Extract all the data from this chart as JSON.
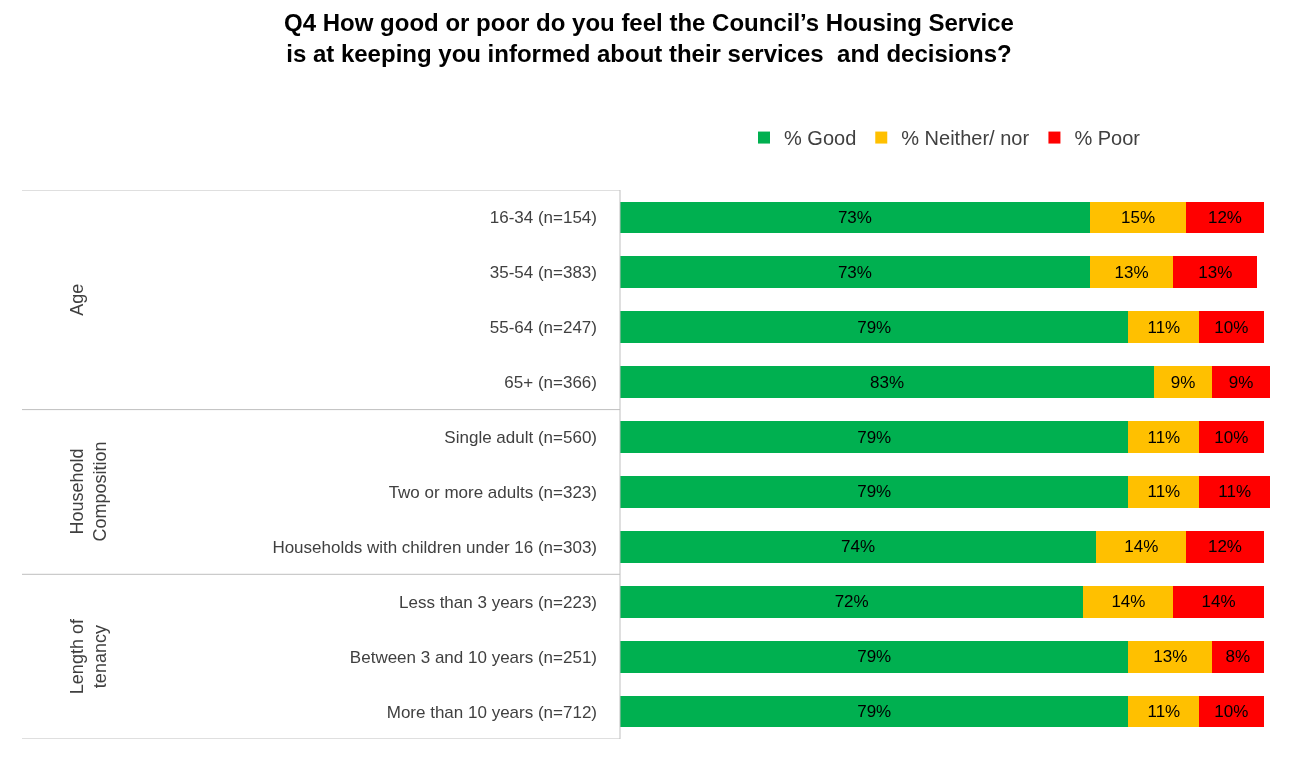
{
  "chart_data": {
    "type": "bar",
    "orientation": "horizontal",
    "stacked": true,
    "legend": "top",
    "title": "Q4 How good or poor do you feel the Council’s Housing Service\nis at keeping you informed about their services  and decisions?",
    "categories": [
      "16-34 (n=154)",
      "35-54 (n=383)",
      "55-64 (n=247)",
      "65+ (n=366)",
      "Single adult (n=560)",
      "Two or more adults (n=323)",
      "Households with children under 16 (n=303)",
      "Less than 3 years (n=223)",
      "Between 3 and 10 years (n=251)",
      "More than 10 years (n=712)"
    ],
    "series": [
      {
        "name": "% Good",
        "color": "#00b050",
        "values": [
          73,
          73,
          79,
          83,
          79,
          79,
          74,
          72,
          79,
          79
        ],
        "value_labels": [
          "73%",
          "73%",
          "79%",
          "83%",
          "79%",
          "79%",
          "74%",
          "72%",
          "79%",
          "79%"
        ]
      },
      {
        "name": "% Neither/ nor",
        "color": "#ffc000",
        "values": [
          15,
          13,
          11,
          9,
          11,
          11,
          14,
          14,
          13,
          11
        ],
        "value_labels": [
          "15%",
          "13%",
          "11%",
          "9%",
          "11%",
          "11%",
          "14%",
          "14%",
          "13%",
          "11%"
        ]
      },
      {
        "name": "% Poor",
        "color": "#ff0000",
        "values": [
          12,
          13,
          10,
          9,
          10,
          11,
          12,
          14,
          8,
          10
        ],
        "value_labels": [
          "12%",
          "13%",
          "10%",
          "9%",
          "10%",
          "11%",
          "12%",
          "14%",
          "8%",
          "10%"
        ]
      }
    ],
    "annotations": [
      "Age",
      "Household Composition",
      "Length of tenancy"
    ]
  }
}
